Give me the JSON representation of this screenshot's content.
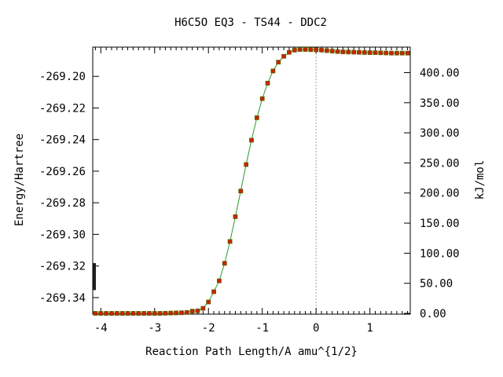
{
  "chart_data": {
    "type": "scatter",
    "title": "H6C5O   EQ3 - TS44 - DDC2",
    "xlabel": "Reaction Path Length/A amu^{1/2}",
    "ylabel": "Energy/Hartree",
    "y2label": "kJ/mol",
    "xlim": [
      -4.15,
      1.75
    ],
    "ylim": [
      -269.3505,
      -269.1815
    ],
    "y2lim": [
      -1.3,
      442.4
    ],
    "xticks": [
      -4,
      -3,
      -2,
      -1,
      0,
      1
    ],
    "xtick_labels": [
      "-4",
      "-3",
      "-2",
      "-1",
      "0",
      "1"
    ],
    "yticks": [
      -269.2,
      -269.22,
      -269.24,
      -269.26,
      -269.28,
      -269.3,
      -269.32,
      -269.34
    ],
    "ytick_labels": [
      "-269.20",
      "-269.22",
      "-269.24",
      "-269.26",
      "-269.28",
      "-269.30",
      "-269.32",
      "-269.34"
    ],
    "y2ticks": [
      0,
      50,
      100,
      150,
      200,
      250,
      300,
      350,
      400
    ],
    "y2tick_labels": [
      "0.00",
      "50.00",
      "100.00",
      "150.00",
      "200.00",
      "250.00",
      "300.00",
      "350.00",
      "400.00"
    ],
    "ts_x": 0,
    "line_color": "#2e9a2e",
    "marker_color": "#cc2200",
    "marker_edge_color": "#606000",
    "dashed_line_color": "#a0a0a0",
    "series": [
      {
        "x": [
          -4.1,
          -4.0,
          -3.9,
          -3.8,
          -3.7,
          -3.6,
          -3.5,
          -3.4,
          -3.3,
          -3.2,
          -3.1,
          -3.0,
          -2.9,
          -2.8,
          -2.7,
          -2.6,
          -2.5,
          -2.4,
          -2.3,
          -2.2,
          -2.1,
          -2.0,
          -1.9,
          -1.8,
          -1.7,
          -1.6,
          -1.5,
          -1.4,
          -1.3,
          -1.2,
          -1.1,
          -1.0,
          -0.9,
          -0.8,
          -0.7,
          -0.6,
          -0.5,
          -0.4,
          -0.3,
          -0.2,
          -0.1,
          0.0,
          0.1,
          0.2,
          0.3,
          0.4,
          0.5,
          0.6,
          0.7,
          0.8,
          0.9,
          1.0,
          1.1,
          1.2,
          1.3,
          1.4,
          1.5,
          1.6,
          1.7
        ],
        "y": [
          -269.35,
          -269.35,
          -269.35,
          -269.35,
          -269.35,
          -269.35,
          -269.35,
          -269.35,
          -269.35,
          -269.35,
          -269.35,
          -269.35,
          -269.35,
          -269.3499,
          -269.3498,
          -269.3497,
          -269.3496,
          -269.3494,
          -269.3486,
          -269.3484,
          -269.3468,
          -269.3428,
          -269.3363,
          -269.3294,
          -269.3183,
          -269.3045,
          -269.2888,
          -269.2726,
          -269.2558,
          -269.2404,
          -269.2262,
          -269.2141,
          -269.2043,
          -269.1966,
          -269.191,
          -269.1873,
          -269.1848,
          -269.1834,
          -269.183,
          -269.183,
          -269.1831,
          -269.1832,
          -269.1834,
          -269.1837,
          -269.184,
          -269.1843,
          -269.1845,
          -269.1846,
          -269.1847,
          -269.1848,
          -269.1849,
          -269.185,
          -269.185,
          -269.1851,
          -269.1852,
          -269.1853,
          -269.1853,
          -269.1853,
          -269.1853
        ]
      }
    ]
  }
}
